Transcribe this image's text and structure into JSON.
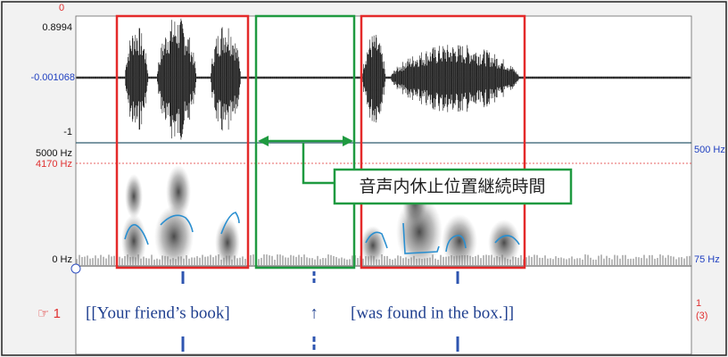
{
  "waveform": {
    "top_marker": "0",
    "max": "0.8994",
    "center": "-0.001068",
    "min": "-1"
  },
  "spectrogram": {
    "max_freq": "5000 Hz",
    "cursor_freq": "4170 Hz",
    "min_freq": "0 Hz"
  },
  "pitch": {
    "max": "500 Hz",
    "min": "75 Hz"
  },
  "tier": {
    "label": "☞ 1",
    "segments": [
      "[[Your friend’s book]",
      "↑",
      "[was found in the box.]]"
    ],
    "count": "1",
    "count_sub": "(3)"
  },
  "annotation": "音声内休止位置継続時間"
}
